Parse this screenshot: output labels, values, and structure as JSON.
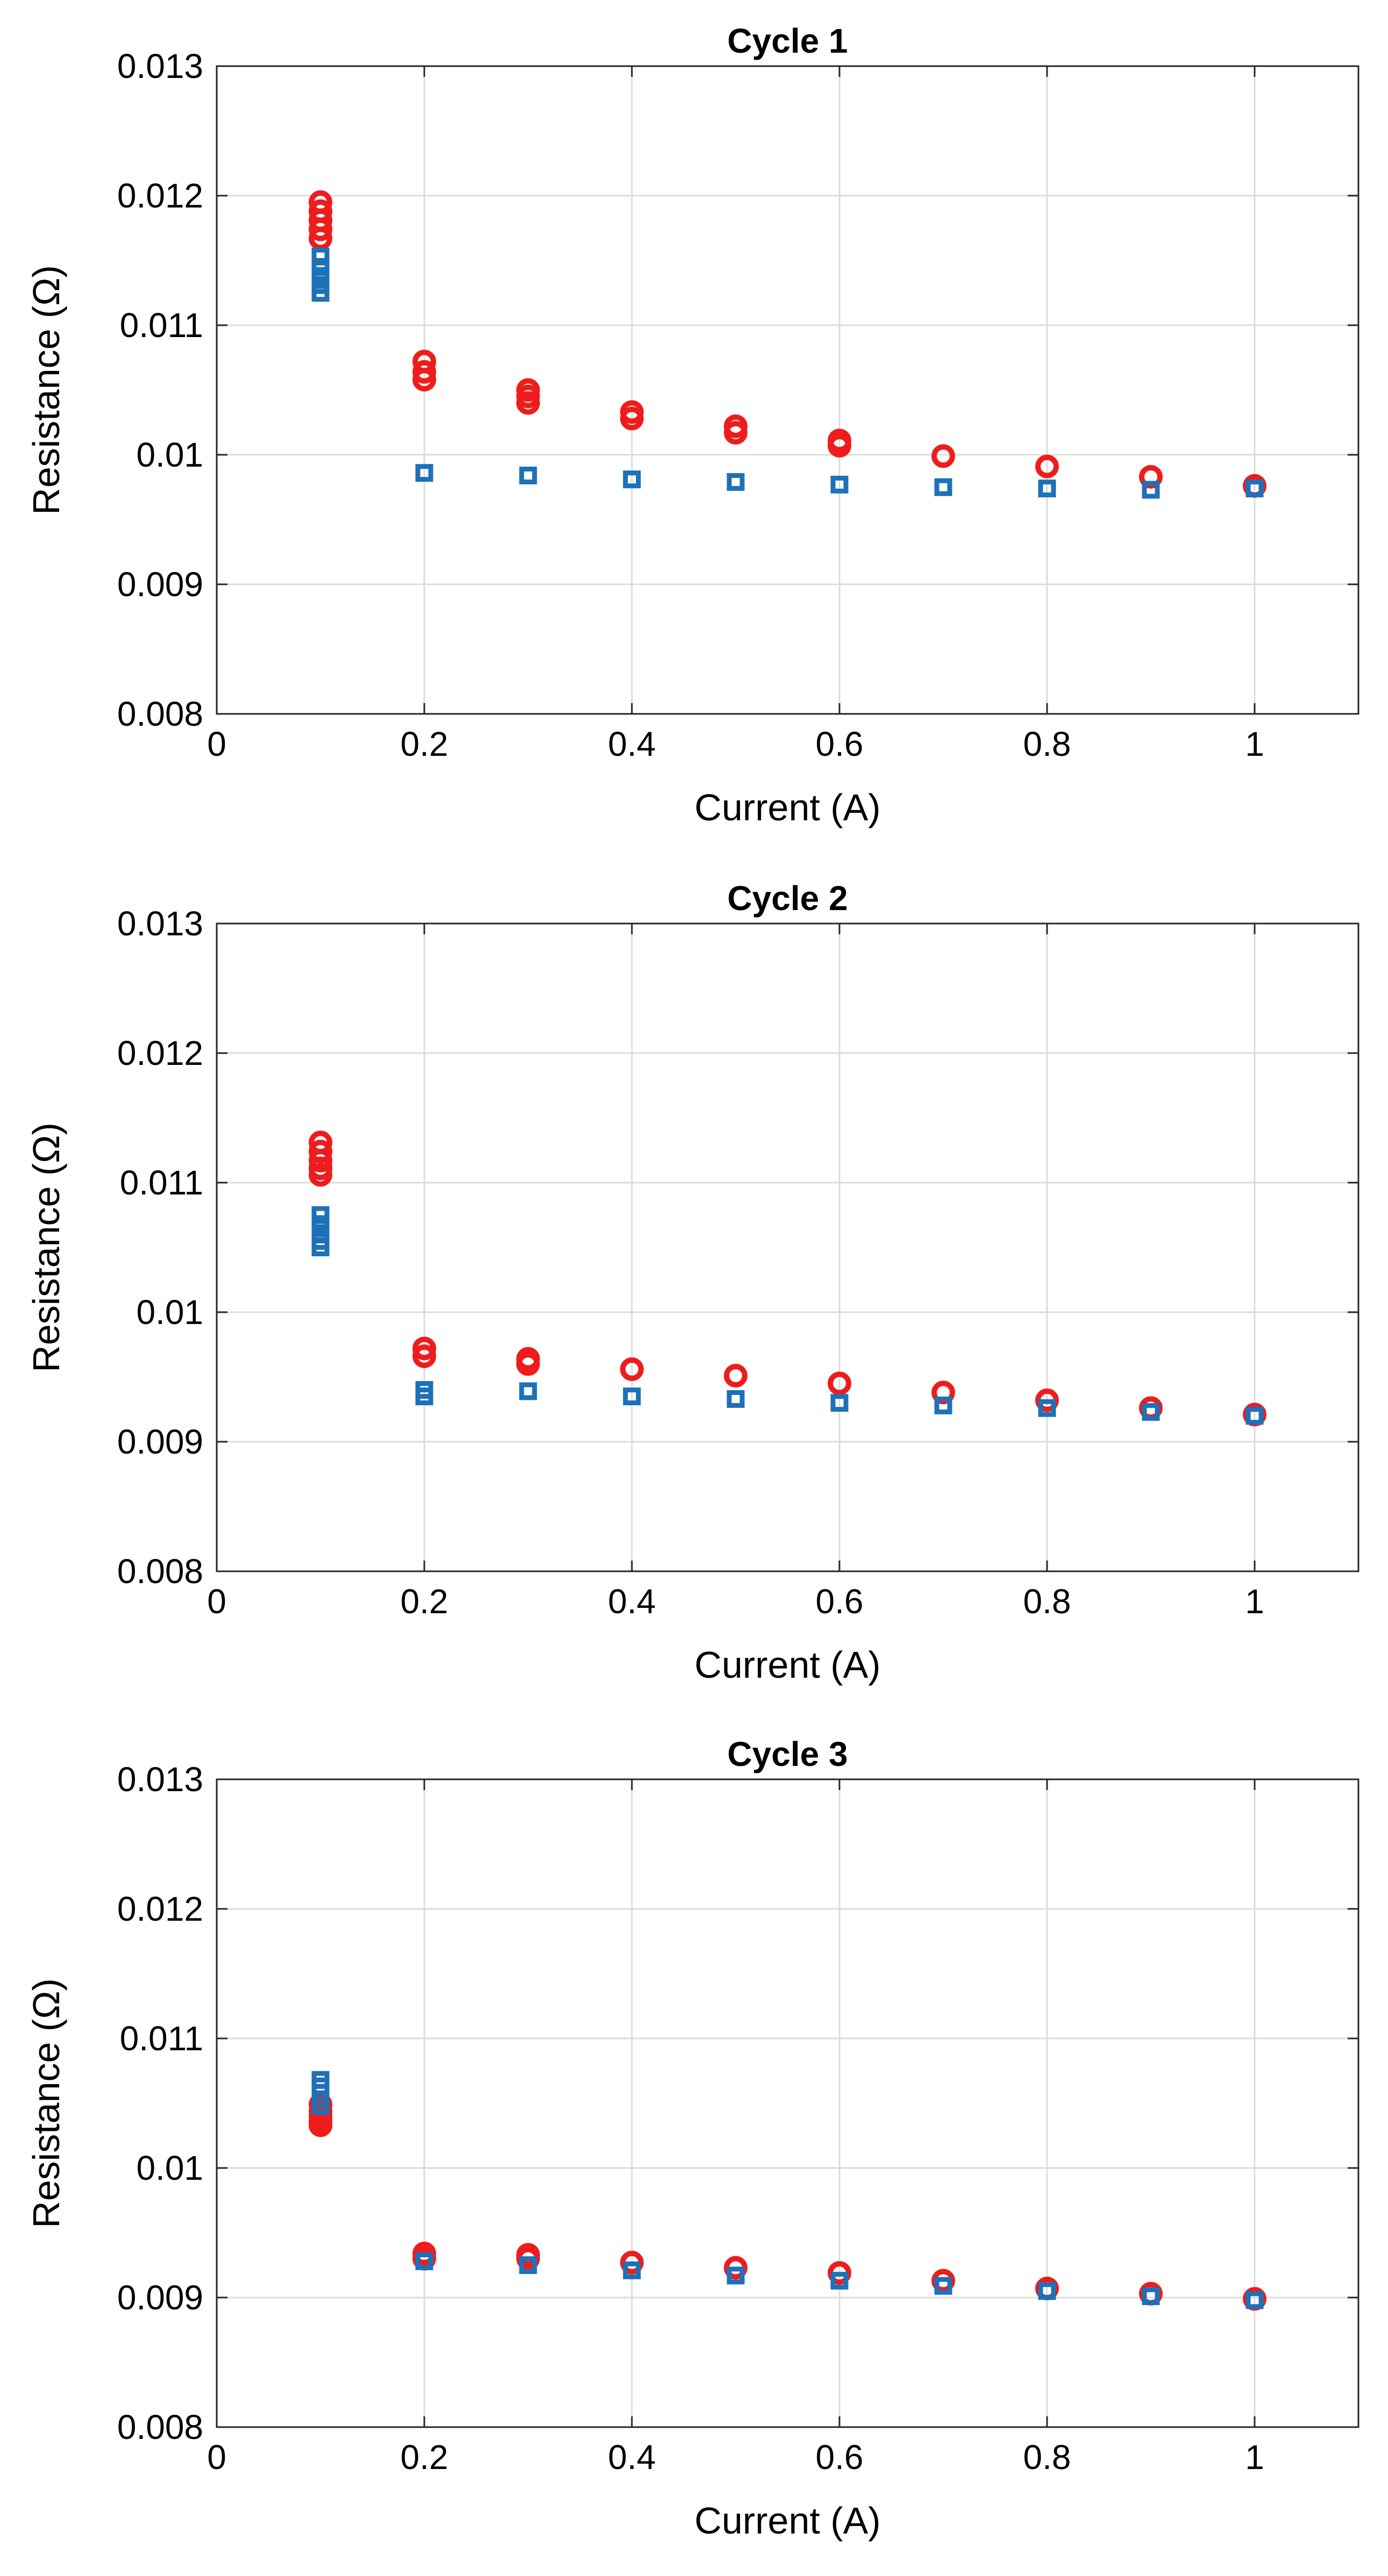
{
  "colors": {
    "series_a": "#ee1c1c",
    "series_b": "#1d71b8",
    "grid": "#dcdcdc",
    "axes": "#262626"
  },
  "chart_data": [
    {
      "type": "scatter",
      "title": "Cycle 1",
      "xlabel": "Current (A)",
      "ylabel": "Resistance (Ω)",
      "xlim": [
        0,
        1.1
      ],
      "ylim": [
        0.008,
        0.013
      ],
      "xticks": [
        0,
        0.2,
        0.4,
        0.6,
        0.8,
        1
      ],
      "xtick_labels": [
        "0",
        "0.2",
        "0.4",
        "0.6",
        "0.8",
        "1"
      ],
      "yticks": [
        0.008,
        0.009,
        0.01,
        0.011,
        0.012,
        0.013
      ],
      "ytick_labels": [
        "0.008",
        "0.009",
        "0.01",
        "0.011",
        "0.012",
        "0.013"
      ],
      "grid": true,
      "series": [
        {
          "name": "circles",
          "marker": "circle",
          "color": "#ee1c1c",
          "x": [
            0.1,
            0.1,
            0.1,
            0.1,
            0.1,
            0.2,
            0.2,
            0.2,
            0.3,
            0.3,
            0.3,
            0.4,
            0.4,
            0.5,
            0.5,
            0.6,
            0.6,
            0.7,
            0.8,
            0.9,
            1.0
          ],
          "y": [
            0.01195,
            0.01188,
            0.01181,
            0.01174,
            0.01167,
            0.01072,
            0.01064,
            0.01058,
            0.0105,
            0.01045,
            0.0104,
            0.01033,
            0.01028,
            0.01022,
            0.01017,
            0.01011,
            0.01007,
            0.00999,
            0.00991,
            0.00983,
            0.00976
          ]
        },
        {
          "name": "squares",
          "marker": "square",
          "color": "#1d71b8",
          "x": [
            0.1,
            0.1,
            0.1,
            0.1,
            0.1,
            0.2,
            0.3,
            0.4,
            0.5,
            0.6,
            0.7,
            0.8,
            0.9,
            1.0
          ],
          "y": [
            0.01153,
            0.01145,
            0.01138,
            0.01131,
            0.01125,
            0.00986,
            0.00984,
            0.00981,
            0.00979,
            0.00977,
            0.00975,
            0.00974,
            0.00973,
            0.00974
          ]
        }
      ]
    },
    {
      "type": "scatter",
      "title": "Cycle 2",
      "xlabel": "Current (A)",
      "ylabel": "Resistance (Ω)",
      "xlim": [
        0,
        1.1
      ],
      "ylim": [
        0.008,
        0.013
      ],
      "xticks": [
        0,
        0.2,
        0.4,
        0.6,
        0.8,
        1
      ],
      "xtick_labels": [
        "0",
        "0.2",
        "0.4",
        "0.6",
        "0.8",
        "1"
      ],
      "yticks": [
        0.008,
        0.009,
        0.01,
        0.011,
        0.012,
        0.013
      ],
      "ytick_labels": [
        "0.008",
        "0.009",
        "0.01",
        "0.011",
        "0.012",
        "0.013"
      ],
      "grid": true,
      "series": [
        {
          "name": "circles",
          "marker": "circle",
          "color": "#ee1c1c",
          "x": [
            0.1,
            0.1,
            0.1,
            0.1,
            0.1,
            0.2,
            0.2,
            0.3,
            0.3,
            0.4,
            0.5,
            0.6,
            0.7,
            0.8,
            0.9,
            1.0
          ],
          "y": [
            0.01131,
            0.01124,
            0.01117,
            0.01111,
            0.01106,
            0.00972,
            0.00966,
            0.00964,
            0.0096,
            0.00956,
            0.00951,
            0.00945,
            0.00938,
            0.00932,
            0.00926,
            0.00921
          ]
        },
        {
          "name": "squares",
          "marker": "square",
          "color": "#1d71b8",
          "x": [
            0.1,
            0.1,
            0.1,
            0.1,
            0.1,
            0.2,
            0.2,
            0.3,
            0.4,
            0.5,
            0.6,
            0.7,
            0.8,
            0.9,
            1.0
          ],
          "y": [
            0.01075,
            0.01068,
            0.01061,
            0.01055,
            0.0105,
            0.0094,
            0.00935,
            0.00939,
            0.00935,
            0.00933,
            0.0093,
            0.00928,
            0.00926,
            0.00923,
            0.0092
          ]
        }
      ]
    },
    {
      "type": "scatter",
      "title": "Cycle 3",
      "xlabel": "Current (A)",
      "ylabel": "Resistance (Ω)",
      "xlim": [
        0,
        1.1
      ],
      "ylim": [
        0.008,
        0.013
      ],
      "xticks": [
        0,
        0.2,
        0.4,
        0.6,
        0.8,
        1
      ],
      "xtick_labels": [
        "0",
        "0.2",
        "0.4",
        "0.6",
        "0.8",
        "1"
      ],
      "yticks": [
        0.008,
        0.009,
        0.01,
        0.011,
        0.012,
        0.013
      ],
      "ytick_labels": [
        "0.008",
        "0.009",
        "0.01",
        "0.011",
        "0.012",
        "0.013"
      ],
      "grid": true,
      "series": [
        {
          "name": "circles",
          "marker": "circle",
          "color": "#ee1c1c",
          "x": [
            0.1,
            0.1,
            0.1,
            0.1,
            0.1,
            0.2,
            0.2,
            0.3,
            0.3,
            0.4,
            0.5,
            0.6,
            0.7,
            0.8,
            0.9,
            1.0
          ],
          "y": [
            0.01049,
            0.01044,
            0.0104,
            0.01036,
            0.01033,
            0.00934,
            0.0093,
            0.00933,
            0.0093,
            0.00927,
            0.00923,
            0.00919,
            0.00913,
            0.00907,
            0.00903,
            0.00899
          ]
        },
        {
          "name": "squares",
          "marker": "square",
          "color": "#1d71b8",
          "x": [
            0.1,
            0.1,
            0.1,
            0.1,
            0.1,
            0.2,
            0.3,
            0.4,
            0.5,
            0.6,
            0.7,
            0.8,
            0.9,
            1.0
          ],
          "y": [
            0.01068,
            0.01063,
            0.01058,
            0.01053,
            0.01048,
            0.00928,
            0.00925,
            0.00921,
            0.00917,
            0.00913,
            0.00909,
            0.00905,
            0.00901,
            0.00898
          ]
        }
      ]
    }
  ]
}
